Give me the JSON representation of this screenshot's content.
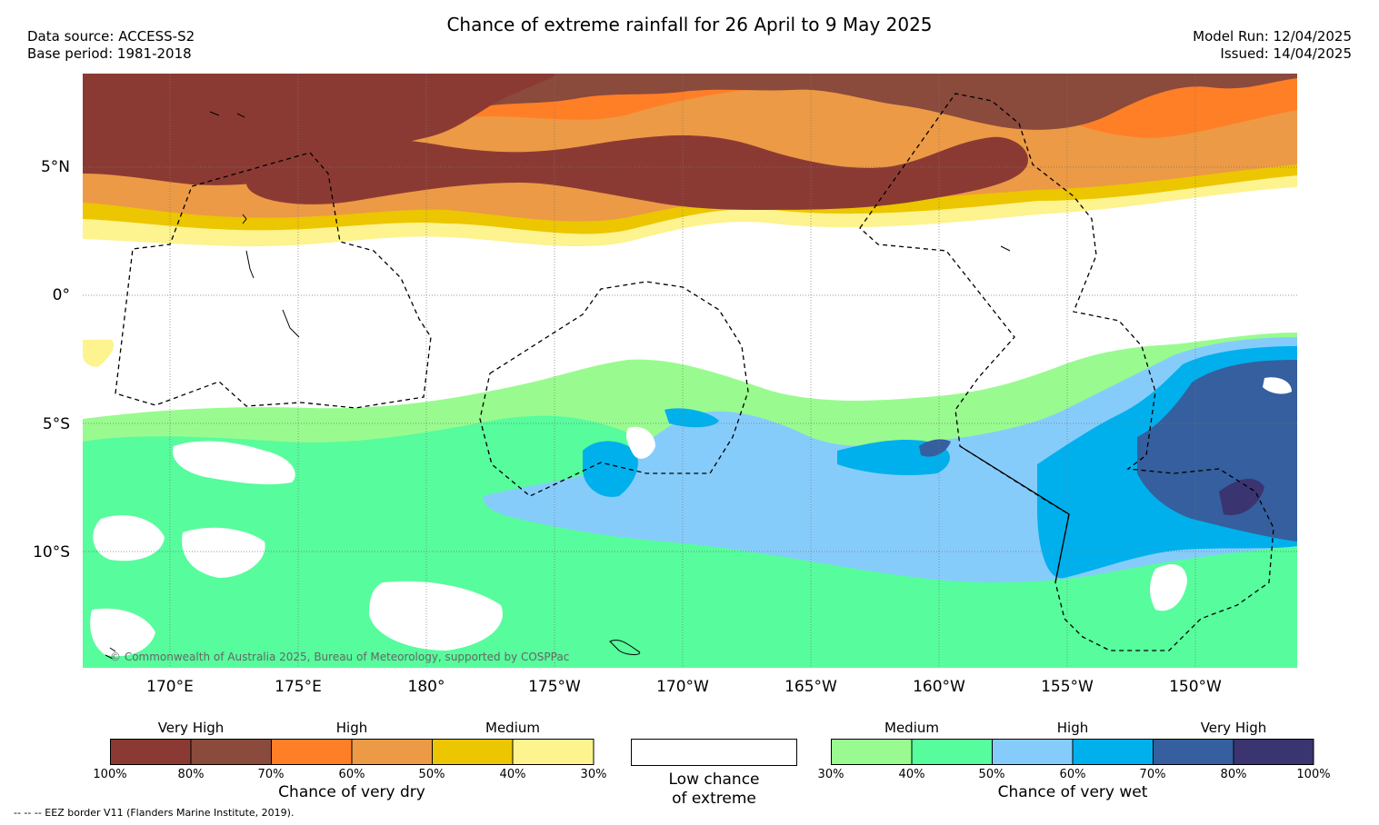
{
  "header": {
    "title": "Chance of extreme rainfall for 26 April to 9 May 2025",
    "data_source": "Data source: ACCESS-S2",
    "base_period": "Base period: 1981-2018",
    "model_run": "Model Run: 12/04/2025",
    "issued": "Issued: 14/04/2025"
  },
  "map": {
    "lat_labels": [
      "5°N",
      "0°",
      "5°S",
      "10°S"
    ],
    "lon_labels": [
      "170°E",
      "175°E",
      "180°",
      "175°W",
      "170°W",
      "165°W",
      "160°W",
      "155°W",
      "150°W"
    ],
    "copyright": "© Commonwealth of Australia 2025, Bureau of Meteorology, supported by COSPPac",
    "colors": {
      "dry": [
        "#8b3a33",
        "#8a4a3c",
        "#ff7f27",
        "#ec9a45",
        "#ecc600",
        "#fdf38f"
      ],
      "wet": [
        "#99fb8f",
        "#57fc9c",
        "#86ccfb",
        "#00b0ec",
        "#355f9e",
        "#3a3470"
      ]
    }
  },
  "legend": {
    "dry": {
      "groups": [
        "Very High",
        "High",
        "Medium"
      ],
      "percents": [
        "100%",
        "80%",
        "70%",
        "60%",
        "50%",
        "40%",
        "30%"
      ],
      "caption": "Chance of very dry"
    },
    "low": {
      "line1": "Low chance",
      "line2": "of extreme"
    },
    "wet": {
      "groups": [
        "Medium",
        "High",
        "Very High"
      ],
      "percents": [
        "30%",
        "40%",
        "50%",
        "60%",
        "70%",
        "80%",
        "100%"
      ],
      "caption": "Chance of very wet"
    }
  },
  "footer": {
    "eez_note": "--  --  -- EEZ border V11 (Flanders Marine Institute, 2019)."
  }
}
